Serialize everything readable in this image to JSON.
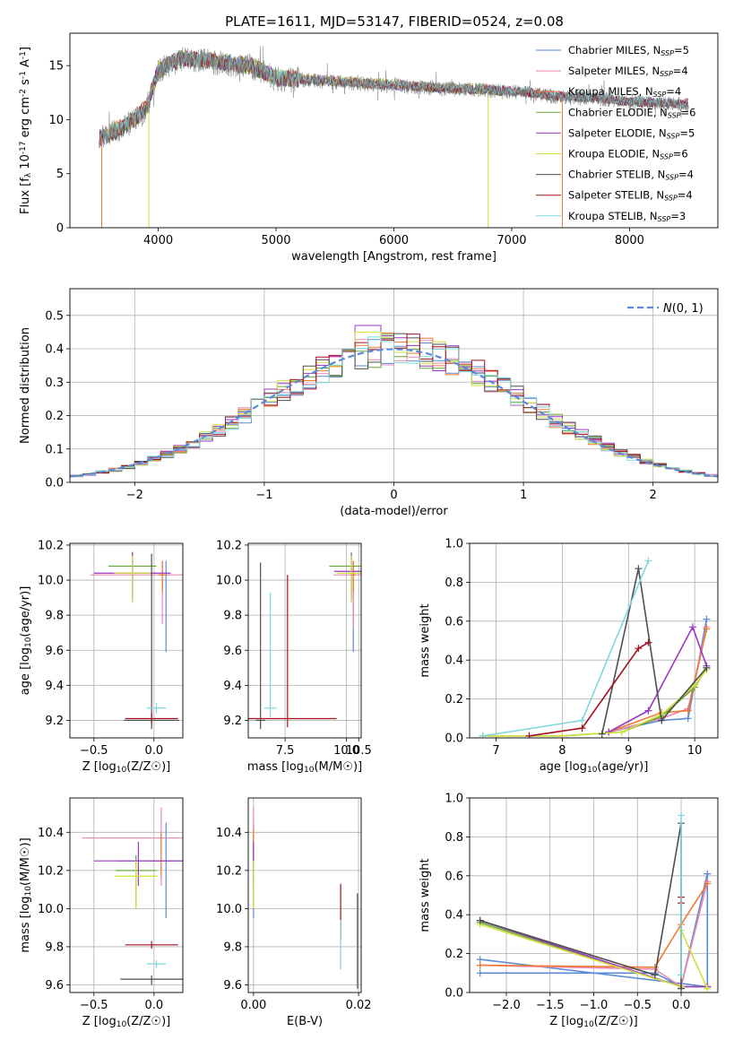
{
  "figure_title": "PLATE=1611, MJD=53147, FIBERID=0524, z=0.08",
  "model_colors": {
    "Chabrier MILES": "#5b8ad6",
    "Salpeter MILES": "#ee86b4",
    "Kroupa MILES": "#ed7b36",
    "Chabrier ELODIE": "#6aa637",
    "Salpeter ELODIE": "#9a38c4",
    "Kroupa ELODIE": "#d2df3e",
    "Chabrier STELIB": "#4e4e4e",
    "Salpeter STELIB": "#a3111e",
    "Kroupa STELIB": "#7fd7de"
  },
  "chart_data": [
    {
      "id": "spectrum",
      "type": "line",
      "title": "PLATE=1611, MJD=53147, FIBERID=0524, z=0.08",
      "xlabel": "wavelength [Angstrom, rest frame]",
      "ylabel": "Flux [f_λ 10^-17 erg cm^-2 s^-1 A^-1]",
      "xlim": [
        3250,
        8750
      ],
      "ylim": [
        0,
        18
      ],
      "xticks": [
        4000,
        5000,
        6000,
        7000,
        8000
      ],
      "yticks": [
        0,
        5,
        10,
        15
      ],
      "legend_position": "top-right",
      "grid": false,
      "data_description_points": [
        [
          3500,
          8.2
        ],
        [
          3700,
          9.2
        ],
        [
          3900,
          11.0
        ],
        [
          4000,
          14.5
        ],
        [
          4200,
          15.6
        ],
        [
          4500,
          15.3
        ],
        [
          4800,
          14.9
        ],
        [
          5000,
          13.8
        ],
        [
          5300,
          13.6
        ],
        [
          5600,
          13.4
        ],
        [
          5900,
          13.2
        ],
        [
          6200,
          13.0
        ],
        [
          6500,
          12.8
        ],
        [
          6800,
          12.7
        ],
        [
          7100,
          12.5
        ],
        [
          7400,
          12.1
        ],
        [
          7700,
          12.0
        ],
        [
          8000,
          11.6
        ],
        [
          8300,
          11.5
        ],
        [
          8500,
          11.4
        ]
      ],
      "series": [
        {
          "name": "Chabrier MILES",
          "legend": "Chabrier MILES, N_SSP=5"
        },
        {
          "name": "Salpeter MILES",
          "legend": "Salpeter MILES, N_SSP=4"
        },
        {
          "name": "Kroupa MILES",
          "legend": "Kroupa MILES, N_SSP=4"
        },
        {
          "name": "Chabrier ELODIE",
          "legend": "Chabrier ELODIE, N_SSP=6"
        },
        {
          "name": "Salpeter ELODIE",
          "legend": "Salpeter ELODIE, N_SSP=5"
        },
        {
          "name": "Kroupa ELODIE",
          "legend": "Kroupa ELODIE, N_SSP=6"
        },
        {
          "name": "Chabrier STELIB",
          "legend": "Chabrier STELIB, N_SSP=4"
        },
        {
          "name": "Salpeter STELIB",
          "legend": "Salpeter STELIB, N_SSP=4"
        },
        {
          "name": "Kroupa STELIB",
          "legend": "Kroupa STELIB, N_SSP=3"
        }
      ],
      "legend_parts": [
        [
          "Chabrier MILES, N",
          "SSP",
          "=5"
        ],
        [
          "Salpeter MILES, N",
          "SSP",
          "=4"
        ],
        [
          "Kroupa MILES, N",
          "SSP",
          "=4"
        ],
        [
          "Chabrier ELODIE, N",
          "SSP",
          "=6"
        ],
        [
          "Salpeter ELODIE, N",
          "SSP",
          "=5"
        ],
        [
          "Kroupa ELODIE, N",
          "SSP",
          "=6"
        ],
        [
          "Chabrier STELIB, N",
          "SSP",
          "=4"
        ],
        [
          "Salpeter STELIB, N",
          "SSP",
          "=4"
        ],
        [
          "Kroupa STELIB, N",
          "SSP",
          "=3"
        ]
      ]
    },
    {
      "id": "residuals",
      "type": "step",
      "xlabel": "(data-model)/error",
      "ylabel": "Normed distribution",
      "xlim": [
        -2.5,
        2.5
      ],
      "ylim": [
        0,
        0.58
      ],
      "xticks": [
        -2,
        -1,
        0,
        1,
        2
      ],
      "yticks": [
        0.0,
        0.1,
        0.2,
        0.3,
        0.4,
        0.5
      ],
      "grid": true,
      "legend_position": "top-right",
      "reference_curve": {
        "name": "N(0,1)",
        "mean": 0,
        "sigma": 1
      },
      "bin_width": 0.1
    },
    {
      "id": "age_vs_Z",
      "type": "errorbar",
      "xlabel": "Z [log10(Z/Z☉)]",
      "ylabel": "age [log10(age/yr)]",
      "xlim": [
        -0.7,
        0.24
      ],
      "ylim": [
        9.1,
        10.21
      ],
      "xticks": [
        -0.5,
        0.0
      ],
      "yticks": [
        9.2,
        9.4,
        9.6,
        9.8,
        10.0,
        10.2
      ],
      "grid": true,
      "points": [
        {
          "series": "Chabrier MILES",
          "x": 0.1,
          "xerr": 0.03,
          "y": 10.03,
          "yerr": [
            0.44,
            0.08
          ]
        },
        {
          "series": "Salpeter MILES",
          "x": 0.07,
          "xerr": 0.6,
          "y": 10.03,
          "yerr": [
            0.28,
            0.08
          ]
        },
        {
          "series": "Kroupa MILES",
          "x": 0.07,
          "xerr": 0.03,
          "y": 10.03,
          "yerr": [
            0.1,
            0.08
          ]
        },
        {
          "series": "Chabrier ELODIE",
          "x": -0.18,
          "xerr": 0.2,
          "y": 10.08,
          "yerr": [
            0.2,
            0.08
          ]
        },
        {
          "series": "Salpeter ELODIE",
          "x": -0.18,
          "xerr": 0.32,
          "y": 10.04,
          "yerr": [
            0.15,
            0.12
          ]
        },
        {
          "series": "Kroupa ELODIE",
          "x": -0.18,
          "xerr": 0.15,
          "y": 10.04,
          "yerr": [
            0.17,
            0.1
          ]
        },
        {
          "series": "Chabrier STELIB",
          "x": -0.02,
          "xerr": 0.23,
          "y": 9.2,
          "yerr": [
            0.05,
            0.95
          ]
        },
        {
          "series": "Salpeter STELIB",
          "x": -0.02,
          "xerr": 0.22,
          "y": 9.21,
          "yerr": [
            0.03,
            0.03
          ]
        },
        {
          "series": "Kroupa STELIB",
          "x": 0.02,
          "xerr": 0.08,
          "y": 9.27,
          "yerr": [
            0.03,
            0.03
          ]
        }
      ]
    },
    {
      "id": "age_vs_mass",
      "type": "errorbar",
      "xlabel": "mass [log10(M/M☉)]",
      "ylabel": "",
      "xlim": [
        6.0,
        10.6
      ],
      "ylim": [
        9.1,
        10.21
      ],
      "xticks": [
        7.5,
        10.0,
        10.5
      ],
      "xticklabels_note": "visible labels 10.0 and 10.5",
      "yticks": [
        9.2,
        9.4,
        9.6,
        9.8,
        10.0,
        10.2
      ],
      "grid": true,
      "points": [
        {
          "series": "Chabrier MILES",
          "x": 10.28,
          "xerr": 0.1,
          "y": 10.03,
          "yerr": [
            0.44,
            0.08
          ]
        },
        {
          "series": "Salpeter MILES",
          "x": 10.28,
          "xerr": 0.8,
          "y": 10.03,
          "yerr": [
            0.3,
            0.08
          ]
        },
        {
          "series": "Kroupa MILES",
          "x": 10.28,
          "xerr": 0.1,
          "y": 10.03,
          "yerr": [
            0.1,
            0.08
          ]
        },
        {
          "series": "Chabrier ELODIE",
          "x": 10.2,
          "xerr": 0.9,
          "y": 10.08,
          "yerr": [
            0.2,
            0.08
          ]
        },
        {
          "series": "Salpeter ELODIE",
          "x": 10.2,
          "xerr": 0.7,
          "y": 10.05,
          "yerr": [
            0.15,
            0.1
          ]
        },
        {
          "series": "Kroupa ELODIE",
          "x": 10.2,
          "xerr": 0.6,
          "y": 10.04,
          "yerr": [
            0.17,
            0.1
          ]
        },
        {
          "series": "Chabrier STELIB",
          "x": 6.5,
          "xerr": 0.2,
          "y": 9.2,
          "yerr": [
            0.05,
            0.9
          ]
        },
        {
          "series": "Salpeter STELIB",
          "x": 7.6,
          "xerr": 2.0,
          "y": 9.21,
          "yerr": [
            0.05,
            0.82
          ]
        },
        {
          "series": "Kroupa STELIB",
          "x": 6.9,
          "xerr": 0.25,
          "y": 9.27,
          "yerr": [
            0.05,
            0.66
          ]
        }
      ]
    },
    {
      "id": "mass_weight_vs_age",
      "type": "line",
      "xlabel": "age [log10(age/yr)]",
      "ylabel": "mass weight",
      "xlim": [
        6.6,
        10.35
      ],
      "ylim": [
        0,
        1.0
      ],
      "xticks": [
        7,
        8,
        9,
        10
      ],
      "yticks": [
        0.0,
        0.2,
        0.4,
        0.6,
        0.8,
        1.0
      ],
      "grid": true,
      "series": [
        {
          "name": "Chabrier MILES",
          "x": [
            8.7,
            9.5,
            9.9,
            10.18
          ],
          "y": [
            0.03,
            0.09,
            0.1,
            0.61
          ]
        },
        {
          "name": "Salpeter MILES",
          "x": [
            8.7,
            9.5,
            9.9,
            10.18
          ],
          "y": [
            0.03,
            0.1,
            0.15,
            0.57
          ]
        },
        {
          "name": "Kroupa MILES",
          "x": [
            8.7,
            9.5,
            9.9,
            10.18
          ],
          "y": [
            0.03,
            0.13,
            0.14,
            0.56
          ]
        },
        {
          "name": "Chabrier ELODIE",
          "x": [
            6.8,
            8.0,
            8.9,
            9.5,
            10.0,
            10.18
          ],
          "y": [
            0.01,
            0.01,
            0.03,
            0.11,
            0.26,
            0.36
          ]
        },
        {
          "name": "Salpeter ELODIE",
          "x": [
            8.7,
            9.3,
            9.97,
            10.18
          ],
          "y": [
            0.03,
            0.14,
            0.57,
            0.37
          ]
        },
        {
          "name": "Kroupa ELODIE",
          "x": [
            6.8,
            8.0,
            8.9,
            9.5,
            10.0,
            10.18
          ],
          "y": [
            0.01,
            0.01,
            0.03,
            0.12,
            0.27,
            0.35
          ]
        },
        {
          "name": "Chabrier STELIB",
          "x": [
            8.6,
            9.15,
            9.5,
            10.18
          ],
          "y": [
            0.02,
            0.87,
            0.09,
            0.36
          ]
        },
        {
          "name": "Salpeter STELIB",
          "x": [
            7.5,
            8.3,
            9.15,
            9.3
          ],
          "y": [
            0.01,
            0.05,
            0.46,
            0.49
          ]
        },
        {
          "name": "Kroupa STELIB",
          "x": [
            6.8,
            8.3,
            9.3
          ],
          "y": [
            0.01,
            0.09,
            0.91
          ]
        }
      ]
    },
    {
      "id": "mass_vs_Z",
      "type": "errorbar",
      "xlabel": "Z [log10(Z/Z☉)]",
      "ylabel": "mass [log10(M/M☉)]",
      "xlim": [
        -0.7,
        0.24
      ],
      "ylim": [
        9.56,
        10.58
      ],
      "xticks": [
        -0.5,
        0.0
      ],
      "yticks": [
        9.6,
        9.8,
        10.0,
        10.2,
        10.4
      ],
      "grid": true,
      "points": [
        {
          "series": "Chabrier MILES",
          "x": 0.1,
          "xerr": 0.4,
          "y": 10.25,
          "yerr": [
            0.3,
            0.2
          ]
        },
        {
          "series": "Salpeter MILES",
          "x": 0.06,
          "xerr": 0.66,
          "y": 10.37,
          "yerr": [
            0.25,
            0.16
          ]
        },
        {
          "series": "Kroupa MILES",
          "x": 0.06,
          "xerr": 0.1,
          "y": 10.25,
          "yerr": [
            0.08,
            0.15
          ]
        },
        {
          "series": "Chabrier ELODIE",
          "x": -0.15,
          "xerr": 0.17,
          "y": 10.2,
          "yerr": [
            0.2,
            0.08
          ]
        },
        {
          "series": "Salpeter ELODIE",
          "x": -0.13,
          "xerr": 0.37,
          "y": 10.25,
          "yerr": [
            0.13,
            0.1
          ]
        },
        {
          "series": "Kroupa ELODIE",
          "x": -0.15,
          "xerr": 0.18,
          "y": 10.17,
          "yerr": [
            0.17,
            0.08
          ]
        },
        {
          "series": "Chabrier STELIB",
          "x": -0.02,
          "xerr": 0.26,
          "y": 9.63,
          "yerr": [
            0.03,
            0.02
          ]
        },
        {
          "series": "Salpeter STELIB",
          "x": -0.02,
          "xerr": 0.22,
          "y": 9.81,
          "yerr": [
            0.02,
            0.02
          ]
        },
        {
          "series": "Kroupa STELIB",
          "x": 0.02,
          "xerr": 0.08,
          "y": 9.71,
          "yerr": [
            0.02,
            0.02
          ]
        }
      ]
    },
    {
      "id": "mass_vs_ebv",
      "type": "errorbar",
      "xlabel": "E(B-V)",
      "ylabel": "",
      "xlim": [
        -0.001,
        0.0205
      ],
      "ylim": [
        9.56,
        10.58
      ],
      "xticks": [
        0.0,
        0.02
      ],
      "yticks": [
        9.6,
        9.8,
        10.0,
        10.2,
        10.4
      ],
      "grid": true,
      "points": [
        {
          "series": "Chabrier MILES",
          "x": 0.0,
          "y": 10.25,
          "yerr": [
            0.3,
            0.2
          ]
        },
        {
          "series": "Salpeter MILES",
          "x": 0.0,
          "y": 10.37,
          "yerr": [
            0.25,
            0.16
          ]
        },
        {
          "series": "Kroupa MILES",
          "x": 0.0,
          "y": 10.3,
          "yerr": [
            0.08,
            0.12
          ]
        },
        {
          "series": "Chabrier ELODIE",
          "x": 0.0,
          "y": 10.2,
          "yerr": [
            0.2,
            0.08
          ]
        },
        {
          "series": "Salpeter ELODIE",
          "x": 0.0,
          "y": 10.25,
          "yerr": [
            0.13,
            0.1
          ]
        },
        {
          "series": "Kroupa ELODIE",
          "x": 0.0,
          "y": 10.17,
          "yerr": [
            0.17,
            0.08
          ]
        },
        {
          "series": "Chabrier STELIB",
          "x": 0.0198,
          "y": 9.8,
          "yerr": [
            0.22,
            0.28
          ]
        },
        {
          "series": "Salpeter STELIB",
          "x": 0.0166,
          "y": 9.98,
          "yerr": [
            0.14,
            0.15
          ]
        },
        {
          "series": "Kroupa STELIB",
          "x": 0.0166,
          "y": 9.8,
          "yerr": [
            0.12,
            0.14
          ]
        }
      ]
    },
    {
      "id": "mass_weight_vs_Z",
      "type": "line",
      "xlabel": "Z [log10(Z/Z☉)]",
      "ylabel": "mass weight",
      "xlim": [
        -2.42,
        0.42
      ],
      "ylim": [
        0,
        1.0
      ],
      "xticks": [
        -2.0,
        -1.5,
        -1.0,
        -0.5,
        0.0
      ],
      "yticks": [
        0.0,
        0.2,
        0.4,
        0.6,
        0.8,
        1.0
      ],
      "grid": true,
      "series": [
        {
          "name": "Chabrier MILES",
          "x": [
            -2.3,
            -0.3,
            0.0,
            0.3,
            0.3,
            -2.3
          ],
          "y": [
            0.1,
            0.1,
            0.03,
            0.61,
            0.03,
            0.17
          ]
        },
        {
          "name": "Salpeter MILES",
          "x": [
            -2.3,
            -0.3,
            0.0,
            0.3
          ],
          "y": [
            0.14,
            0.12,
            0.03,
            0.57
          ]
        },
        {
          "name": "Kroupa MILES",
          "x": [
            -2.3,
            -0.3,
            0.0,
            0.3
          ],
          "y": [
            0.14,
            0.13,
            0.35,
            0.56
          ]
        },
        {
          "name": "Chabrier ELODIE",
          "x": [
            -2.3,
            0.0,
            0.3
          ],
          "y": [
            0.36,
            0.03,
            0.03
          ]
        },
        {
          "name": "Salpeter ELODIE",
          "x": [
            -2.3,
            0.0,
            0.3
          ],
          "y": [
            0.37,
            0.03,
            0.03
          ]
        },
        {
          "name": "Kroupa ELODIE",
          "x": [
            -2.3,
            0.0,
            0.0,
            0.3
          ],
          "y": [
            0.35,
            0.03,
            0.32,
            0.02
          ]
        },
        {
          "name": "Chabrier STELIB",
          "x": [
            -2.3,
            -0.3,
            0.0,
            0.0
          ],
          "y": [
            0.37,
            0.09,
            0.87,
            0.02
          ]
        },
        {
          "name": "Salpeter STELIB",
          "x": [
            0.0,
            0.0
          ],
          "y": [
            0.46,
            0.49
          ]
        },
        {
          "name": "Kroupa STELIB",
          "x": [
            0.0,
            0.0
          ],
          "y": [
            0.91,
            0.09
          ]
        }
      ]
    }
  ]
}
